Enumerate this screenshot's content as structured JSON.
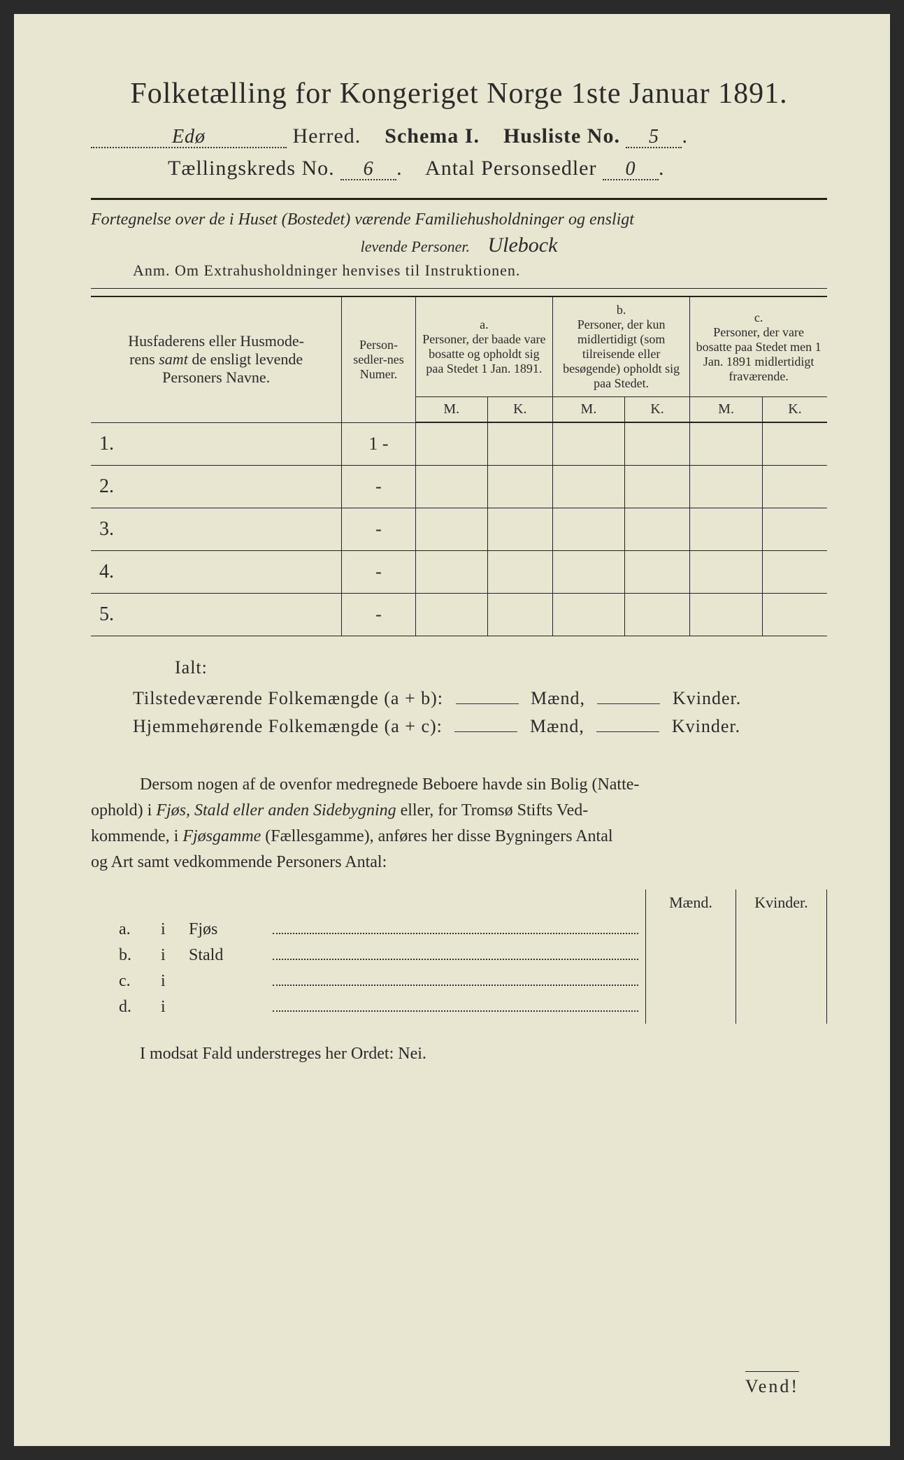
{
  "title": "Folketælling for Kongeriget Norge 1ste Januar 1891.",
  "header": {
    "herred_value": "Edø",
    "herred_label": "Herred.",
    "schema": "Schema I.",
    "husliste_label": "Husliste No.",
    "husliste_value": "5",
    "kreds_label": "Tællingskreds No.",
    "kreds_value": "6",
    "antal_label": "Antal Personsedler",
    "antal_value": "0"
  },
  "subtitle1": "Fortegnelse over de i Huset (Bostedet) værende Familiehusholdninger og ensligt",
  "subtitle2_prefix": "levende Personer.",
  "cursive_note": "Ulebock",
  "anm": "Anm. Om Extrahusholdninger henvises til Instruktionen.",
  "table": {
    "col1": "Husfaderens eller Husmoderens samt de ensligt levende Personers Navne.",
    "col2": "Person-sedler-nes Numer.",
    "colA_top": "a.",
    "colA": "Personer, der baade vare bosatte og opholdt sig paa Stedet 1 Jan. 1891.",
    "colB_top": "b.",
    "colB": "Personer, der kun midlertidigt (som tilreisende eller besøgende) opholdt sig paa Stedet.",
    "colC_top": "c.",
    "colC": "Personer, der vare bosatte paa Stedet men 1 Jan. 1891 midlertidigt fraværende.",
    "M": "M.",
    "K": "K.",
    "rows": [
      {
        "n": "1.",
        "num": "1 -"
      },
      {
        "n": "2.",
        "num": "-"
      },
      {
        "n": "3.",
        "num": "-"
      },
      {
        "n": "4.",
        "num": "-"
      },
      {
        "n": "5.",
        "num": "-"
      }
    ]
  },
  "ialt": "Ialt:",
  "sum1_label": "Tilstedeværende Folkemængde (a + b):",
  "sum2_label": "Hjemmehørende Folkemængde (a + c):",
  "maend": "Mænd,",
  "kvinder": "Kvinder.",
  "para": "Dersom nogen af de ovenfor medregnede Beboere havde sin Bolig (Natteophold) i Fjøs, Stald eller anden Sidebygning eller, for Tromsø Stifts Vedkommende, i Fjøsgamme (Fællesgamme), anføres her disse Bygningers Antal og Art samt vedkommende Personers Antal:",
  "lower": {
    "maend": "Mænd.",
    "kvinder": "Kvinder.",
    "rows": [
      {
        "lab": "a.",
        "i": "i",
        "name": "Fjøs"
      },
      {
        "lab": "b.",
        "i": "i",
        "name": "Stald"
      },
      {
        "lab": "c.",
        "i": "i",
        "name": ""
      },
      {
        "lab": "d.",
        "i": "i",
        "name": ""
      }
    ]
  },
  "nei": "I modsat Fald understreges her Ordet: Nei.",
  "vend": "Vend!",
  "colors": {
    "paper": "#e8e5d0",
    "ink": "#2a2a2a"
  }
}
